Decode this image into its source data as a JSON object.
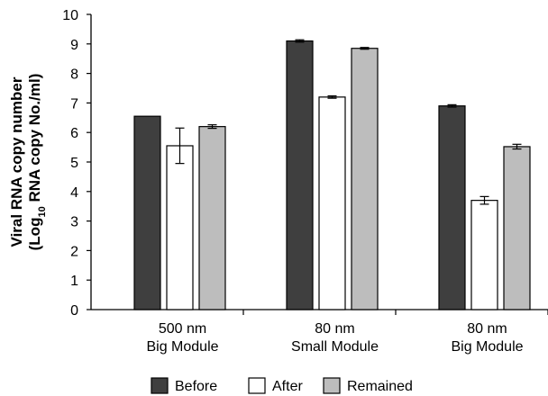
{
  "colors": {
    "before": "#3f3f3f",
    "after": "#ffffff",
    "remained": "#bdbdbd",
    "stroke": "#000000"
  },
  "chart_data": {
    "type": "bar",
    "categories": [
      [
        "500 nm",
        "Big Module"
      ],
      [
        "80 nm",
        "Small Module"
      ],
      [
        "80 nm",
        "Big Module"
      ]
    ],
    "series": [
      {
        "name": "Before",
        "values": [
          6.55,
          9.1,
          6.9
        ],
        "errors": [
          0.0,
          0.04,
          0.04
        ]
      },
      {
        "name": "After",
        "values": [
          5.55,
          7.2,
          3.7
        ],
        "errors": [
          0.6,
          0.04,
          0.13
        ]
      },
      {
        "name": "Remained",
        "values": [
          6.2,
          8.85,
          5.52
        ],
        "errors": [
          0.06,
          0.03,
          0.08
        ]
      }
    ],
    "ylabel_lines": [
      "Viral RNA copy number",
      "(Log",
      "10",
      " RNA copy No./ml)"
    ],
    "ylim": [
      0,
      10
    ],
    "yticks": [
      "0",
      "1",
      "2",
      "3",
      "4",
      "5",
      "6",
      "7",
      "8",
      "9",
      "10"
    ],
    "grid": false,
    "legend_position": "bottom",
    "error_bars": true
  }
}
